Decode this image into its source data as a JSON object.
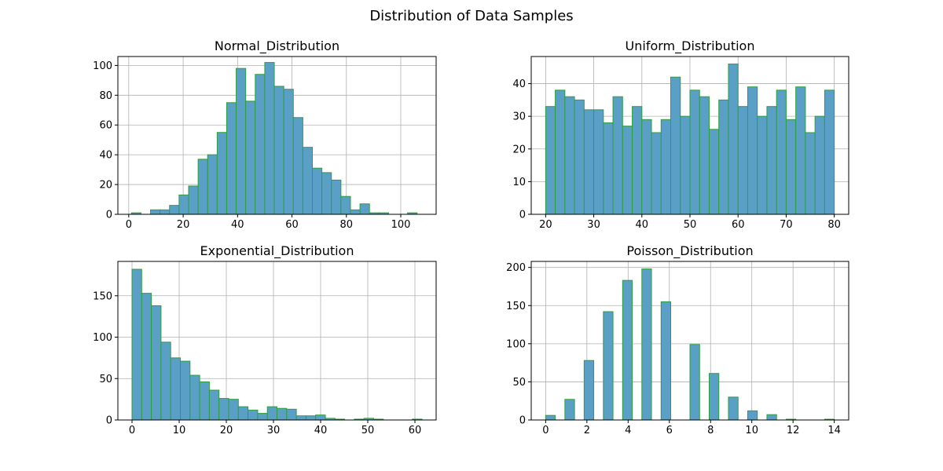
{
  "figure": {
    "title": "Distribution of Data Samples",
    "colors": {
      "bar_fill": "#5aa0c6",
      "bar_edge": "#2e9e3e",
      "grid": "#b0b0b0",
      "axis": "#000000"
    }
  },
  "chart_data": [
    {
      "type": "bar",
      "title": "Normal_Distribution",
      "xlabel": "",
      "ylabel": "",
      "grid": true,
      "bin_start": 1.0,
      "bin_width": 3.5,
      "values": [
        1,
        0,
        3,
        3,
        6,
        13,
        19,
        37,
        40,
        55,
        75,
        98,
        76,
        94,
        102,
        86,
        84,
        65,
        45,
        31,
        28,
        23,
        12,
        3,
        7,
        1,
        1,
        0,
        0,
        1
      ],
      "xlim": [
        -4,
        113
      ],
      "ylim": [
        0,
        106
      ],
      "xticks": [
        0,
        20,
        40,
        60,
        80,
        100
      ],
      "yticks": [
        0,
        20,
        40,
        60,
        80,
        100
      ]
    },
    {
      "type": "bar",
      "title": "Uniform_Distribution",
      "xlabel": "",
      "ylabel": "",
      "grid": true,
      "bin_start": 20.0,
      "bin_width": 2.0,
      "values": [
        33,
        38,
        36,
        35,
        32,
        32,
        28,
        36,
        27,
        33,
        29,
        25,
        29,
        42,
        30,
        38,
        36,
        26,
        35,
        46,
        33,
        39,
        30,
        33,
        38,
        29,
        39,
        25,
        30,
        38
      ],
      "xlim": [
        17,
        83
      ],
      "ylim": [
        0,
        48.3
      ],
      "xticks": [
        20,
        30,
        40,
        50,
        60,
        70,
        80
      ],
      "yticks": [
        0,
        10,
        20,
        30,
        40
      ]
    },
    {
      "type": "bar",
      "title": "Exponential_Distribution",
      "xlabel": "",
      "ylabel": "",
      "grid": true,
      "bin_start": 0.0,
      "bin_width": 2.05,
      "values": [
        182,
        153,
        138,
        94,
        75,
        71,
        54,
        46,
        36,
        26,
        25,
        16,
        12,
        8,
        16,
        14,
        13,
        5,
        5,
        6,
        2,
        1,
        0,
        1,
        2,
        1,
        0,
        0,
        0,
        1
      ],
      "xlim": [
        -3,
        64.5
      ],
      "ylim": [
        0,
        191.5
      ],
      "xticks": [
        0,
        10,
        20,
        30,
        40,
        50,
        60
      ],
      "yticks": [
        0,
        50,
        100,
        150
      ]
    },
    {
      "type": "bar",
      "title": "Poisson_Distribution",
      "xlabel": "",
      "ylabel": "",
      "grid": true,
      "bin_start": 0.0,
      "bin_width": 0.4667,
      "values": [
        6,
        0,
        27,
        0,
        78,
        0,
        142,
        0,
        183,
        0,
        198,
        0,
        155,
        0,
        0,
        99,
        0,
        61,
        0,
        30,
        0,
        12,
        0,
        7,
        0,
        1,
        0,
        0,
        0,
        1
      ],
      "xlim": [
        -0.7,
        14.7
      ],
      "ylim": [
        0,
        207.9
      ],
      "xticks": [
        0,
        2,
        4,
        6,
        8,
        10,
        12,
        14
      ],
      "yticks": [
        0,
        50,
        100,
        150,
        200
      ]
    }
  ]
}
